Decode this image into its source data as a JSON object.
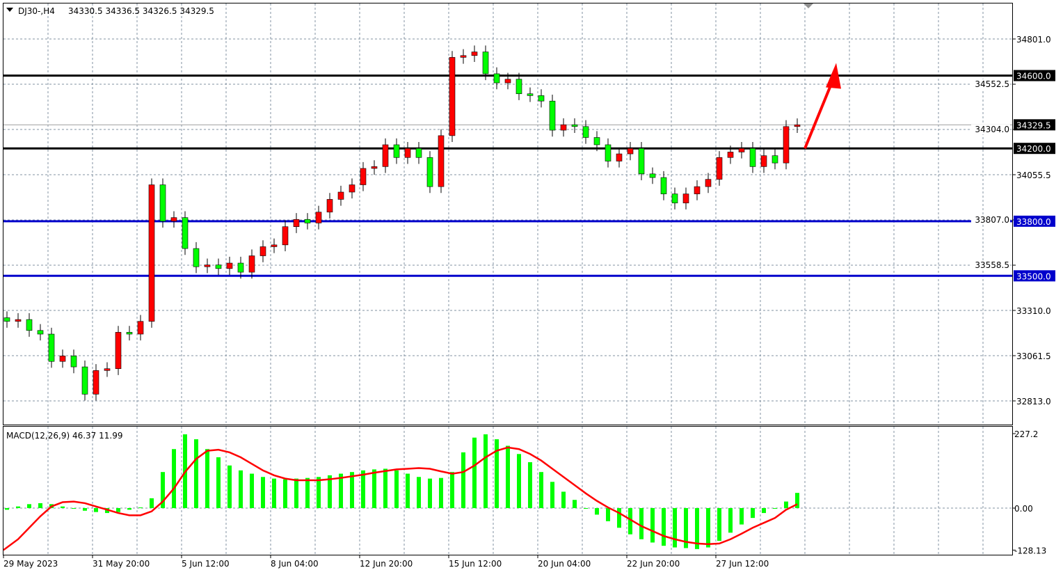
{
  "header": {
    "symbol": "DJ30-,H4",
    "ohlc": "34330.5 34336.5 34326.5 34329.5"
  },
  "colors": {
    "bull_candle": "#ff0000",
    "bear_candle": "#00ff00",
    "support_resistance_black": "#000000",
    "support_resistance_blue": "#0000cc",
    "macd_histogram": "#00ff00",
    "macd_signal": "#ff0000",
    "arrow": "#ff0000"
  },
  "chart_data": [
    {
      "type": "candlestick",
      "title": "DJ30-,H4",
      "y_ticks": [
        "34801.0",
        "34552.5",
        "34304.0",
        "34055.5",
        "33807.0",
        "33558.5",
        "33310.0",
        "33061.5",
        "32813.0"
      ],
      "y_tick_values": [
        34801.0,
        34552.5,
        34304.0,
        34055.5,
        33807.0,
        33558.5,
        33310.0,
        33061.5,
        32813.0
      ],
      "x_ticks": [
        "29 May 2023",
        "31 May 20:00",
        "5 Jun 12:00",
        "8 Jun 04:00",
        "12 Jun 20:00",
        "15 Jun 12:00",
        "20 Jun 04:00",
        "22 Jun 20:00",
        "27 Jun 12:00"
      ],
      "current_price": {
        "value": 34329.5,
        "label": "34329.5"
      },
      "levels": [
        {
          "value": 34600.0,
          "label": "34600.0",
          "color": "#000000"
        },
        {
          "value": 34200.0,
          "label": "34200.0",
          "color": "#000000"
        },
        {
          "value": 33800.0,
          "label": "33800.0",
          "color": "#0000cc"
        },
        {
          "value": 33500.0,
          "label": "33500.0",
          "color": "#0000cc"
        }
      ],
      "arrow": {
        "from_price": 34200,
        "to_price": 34650,
        "direction": "up"
      },
      "closes": [
        33250,
        33260,
        33200,
        33180,
        33030,
        33060,
        33000,
        32850,
        32980,
        32990,
        33190,
        33180,
        33250,
        34000,
        33800,
        33820,
        33650,
        33550,
        33560,
        33540,
        33570,
        33520,
        33610,
        33660,
        33670,
        33770,
        33810,
        33790,
        33850,
        33920,
        33960,
        34000,
        34090,
        34100,
        34220,
        34150,
        34200,
        34150,
        33990,
        34270,
        34700,
        34710,
        34730,
        34610,
        34560,
        34580,
        34500,
        34490,
        34460,
        34300,
        34330,
        34320,
        34260,
        34220,
        34130,
        34170,
        34200,
        34060,
        34040,
        33950,
        33900,
        33950,
        33990,
        34030,
        34150,
        34180,
        34200,
        34100,
        34160,
        34120,
        34320,
        34329.5
      ],
      "ylim": [
        32700,
        34900
      ],
      "grid": true
    },
    {
      "type": "bar+line",
      "label": "MACD(12,26,9) 46.37 11.99",
      "y_ticks": [
        "227.2",
        "0.00",
        "-128.13"
      ],
      "y_tick_values": [
        227.2,
        0,
        -128.13
      ],
      "macd": [
        -5,
        5,
        12,
        15,
        12,
        5,
        -2,
        -8,
        -12,
        -15,
        -12,
        -5,
        2,
        30,
        110,
        180,
        225,
        210,
        180,
        155,
        130,
        115,
        105,
        95,
        90,
        88,
        90,
        92,
        95,
        100,
        105,
        110,
        115,
        118,
        120,
        115,
        105,
        95,
        90,
        92,
        110,
        170,
        215,
        225,
        210,
        190,
        165,
        140,
        110,
        80,
        50,
        25,
        0,
        -20,
        -40,
        -60,
        -80,
        -95,
        -105,
        -115,
        -120,
        -122,
        -125,
        -120,
        -100,
        -75,
        -50,
        -30,
        -15,
        0,
        20,
        46.37
      ],
      "signal": [
        -128,
        -95,
        -60,
        -25,
        5,
        18,
        20,
        15,
        5,
        -5,
        -15,
        -22,
        -22,
        -10,
        20,
        60,
        110,
        150,
        175,
        178,
        170,
        155,
        135,
        115,
        100,
        90,
        85,
        85,
        85,
        88,
        92,
        97,
        102,
        108,
        113,
        118,
        120,
        122,
        120,
        112,
        105,
        110,
        130,
        155,
        175,
        185,
        180,
        165,
        145,
        120,
        95,
        70,
        45,
        22,
        2,
        -15,
        -35,
        -55,
        -70,
        -85,
        -95,
        -103,
        -108,
        -110,
        -108,
        -95,
        -78,
        -60,
        -45,
        -30,
        -5,
        11.99
      ]
    }
  ]
}
